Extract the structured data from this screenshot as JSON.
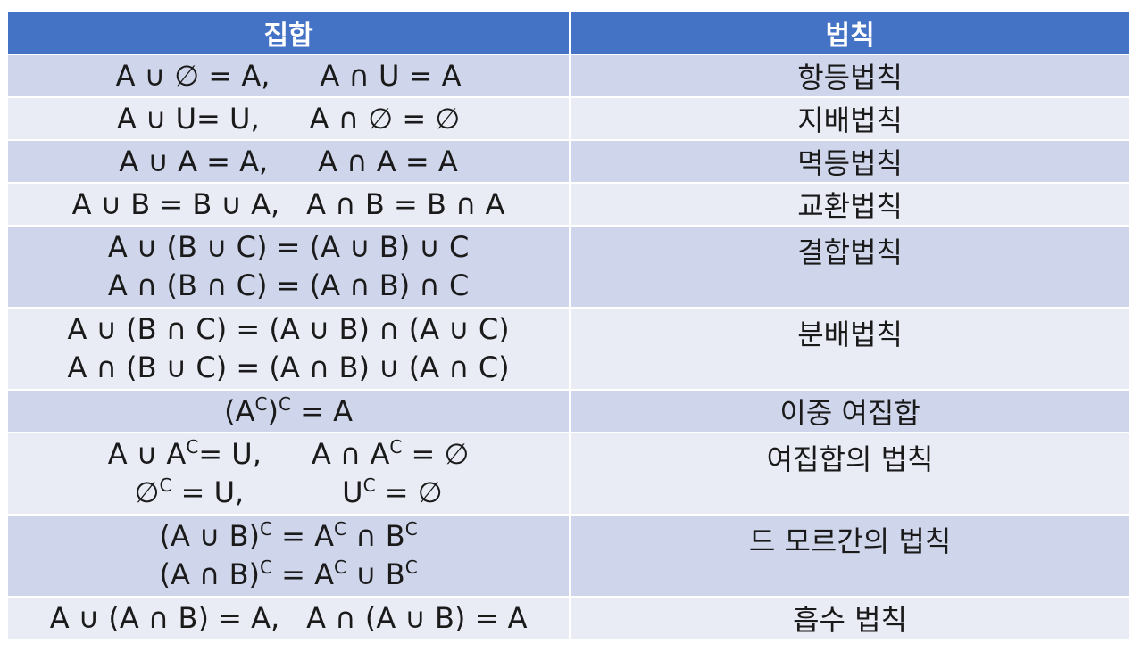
{
  "header": {
    "set_label": "집합",
    "law_label": "법칙"
  },
  "rows": [
    {
      "law": "항등법칙",
      "lines": [
        [
          "A ∪ ∅ = A,",
          "A ∩ U = A"
        ]
      ]
    },
    {
      "law": "지배법칙",
      "lines": [
        [
          "A ∪ U= U,",
          "A ∩ ∅ = ∅"
        ]
      ]
    },
    {
      "law": "멱등법칙",
      "lines": [
        [
          "A ∪ A = A,",
          "A ∩ A = A"
        ]
      ]
    },
    {
      "law": "교환법칙",
      "lines": [
        [
          "A ∪ B = B ∪ A,",
          "A ∩ B = B ∩ A"
        ]
      ]
    },
    {
      "law": "결합법칙",
      "lines": [
        [
          "A ∪ (B ∪ C) = (A ∪ B) ∪ C"
        ],
        [
          "A ∩ (B ∩ C) = (A ∩ B) ∩ C"
        ]
      ]
    },
    {
      "law": "분배법칙",
      "lines": [
        [
          "A ∪ (B ∩ C) = (A ∪ B) ∩ (A ∪ C)"
        ],
        [
          "A ∩ (B ∪ C) = (A ∩ B) ∪ (A ∩ C)"
        ]
      ]
    },
    {
      "law": "이중 여집합",
      "formula": {
        "open": "(A",
        "sup1": "C",
        "close": ")",
        "sup2": "C",
        "rest": " = A"
      }
    },
    {
      "law": "여집합의 법칙",
      "complement": {
        "a1": "A ∪ A",
        "a1sup": "C",
        "a1rest": "= U,",
        "a2": "A ∩ A",
        "a2sup": "C",
        "a2rest": " = ∅",
        "b1": "∅",
        "b1sup": "C",
        "b1rest": " = U,",
        "b2": "U",
        "b2sup": "C",
        "b2rest": " = ∅"
      }
    },
    {
      "law": "드 모르간의 법칙",
      "demorgan": {
        "l1a": "(A ∪ B)",
        "l1sup": "C",
        "l1b": " = A",
        "l1sup2": "C",
        "l1c": " ∩ B",
        "l1sup3": "C",
        "l2a": "(A ∩ B)",
        "l2sup": "C",
        "l2b": " = A",
        "l2sup2": "C",
        "l2c": " ∪ B",
        "l2sup3": "C"
      }
    },
    {
      "law": "흡수 법칙",
      "lines": [
        [
          "A ∪ (A ∩ B) = A,",
          "A ∩ (A ∪ B) = A"
        ]
      ]
    }
  ]
}
